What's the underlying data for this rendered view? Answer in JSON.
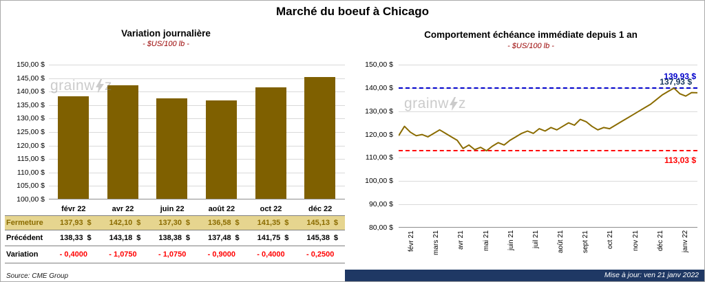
{
  "page": {
    "title": "Marché du boeuf à Chicago",
    "source": "Source: CME Group",
    "updated": "Mise à jour: ven 21 janv 2022"
  },
  "watermark": {
    "part1": "grainw",
    "part2": "z"
  },
  "colors": {
    "bar": "#7F6000",
    "line": "#8a6b00",
    "max_line": "#0000CC",
    "min_line": "#FF0000",
    "end_label": "#17375E",
    "fermeture_bg": "#E6D58F",
    "fermeture_text": "#8a6b00",
    "variation_text": "#FF0000",
    "navy_bar": "#1F3864",
    "subtitle": "#990000"
  },
  "chart_data": [
    {
      "type": "bar",
      "title": "Variation journalière",
      "subtitle": "- $US/100 lb -",
      "categories": [
        "févr 22",
        "avr 22",
        "juin 22",
        "août 22",
        "oct 22",
        "déc 22"
      ],
      "values": [
        137.93,
        142.1,
        137.3,
        136.58,
        141.35,
        145.13
      ],
      "ylim": [
        100,
        150
      ],
      "ytick_step": 5,
      "yticks": [
        "150,00 $",
        "145,00 $",
        "140,00 $",
        "135,00 $",
        "130,00 $",
        "125,00 $",
        "120,00 $",
        "115,00 $",
        "110,00 $",
        "105,00 $",
        "100,00 $"
      ],
      "grid": true,
      "legend": "none"
    },
    {
      "type": "line",
      "title": "Comportement échéance immédiate depuis 1 an",
      "subtitle": "- $US/100 lb -",
      "x_labels": [
        "févr 21",
        "mars 21",
        "avr 21",
        "mai 21",
        "juin 21",
        "juil 21",
        "août 21",
        "sept 21",
        "oct 21",
        "nov 21",
        "déc 21",
        "janv 22"
      ],
      "values": [
        119.5,
        123.5,
        121.0,
        119.5,
        120.0,
        119.0,
        120.5,
        122.0,
        120.5,
        119.0,
        117.5,
        114.0,
        115.5,
        113.5,
        114.5,
        113.03,
        115.0,
        116.5,
        115.5,
        117.5,
        119.0,
        120.5,
        121.5,
        120.5,
        122.5,
        121.5,
        123.0,
        122.0,
        123.5,
        125.0,
        124.0,
        126.5,
        125.5,
        123.5,
        122.0,
        123.0,
        122.5,
        124.0,
        125.5,
        127.0,
        128.5,
        130.0,
        131.5,
        133.0,
        135.0,
        137.0,
        138.5,
        139.93,
        137.5,
        136.5,
        138.0,
        137.93
      ],
      "ylim": [
        80,
        150
      ],
      "ytick_step": 10,
      "yticks": [
        "150,00 $",
        "140,00 $",
        "130,00 $",
        "120,00 $",
        "110,00 $",
        "100,00 $",
        "90,00 $",
        "80,00 $"
      ],
      "grid": true,
      "legend": "none",
      "ref_lines": [
        {
          "value": 139.93,
          "label": "139,93 $",
          "color": "#0000CC",
          "style": "dashed",
          "label_dy": -24
        },
        {
          "value": 113.03,
          "label": "113,03 $",
          "color": "#FF0000",
          "style": "dashed",
          "label_dy": 7
        }
      ],
      "end_label": {
        "text": "137,93 $",
        "value": 137.93,
        "color": "#17375E"
      }
    }
  ],
  "table": {
    "rows": [
      {
        "label": "Fermeture",
        "style": "fermeture",
        "suffix": "$",
        "values": [
          "137,93",
          "142,10",
          "137,30",
          "136,58",
          "141,35",
          "145,13"
        ]
      },
      {
        "label": "Précédent",
        "style": "precedent",
        "suffix": "$",
        "values": [
          "138,33",
          "143,18",
          "138,38",
          "137,48",
          "141,75",
          "145,38"
        ]
      },
      {
        "label": "Variation",
        "style": "variation",
        "suffix": "",
        "values": [
          "- 0,4000",
          "- 1,0750",
          "- 1,0750",
          "- 0,9000",
          "- 0,4000",
          "- 0,2500"
        ]
      }
    ]
  }
}
